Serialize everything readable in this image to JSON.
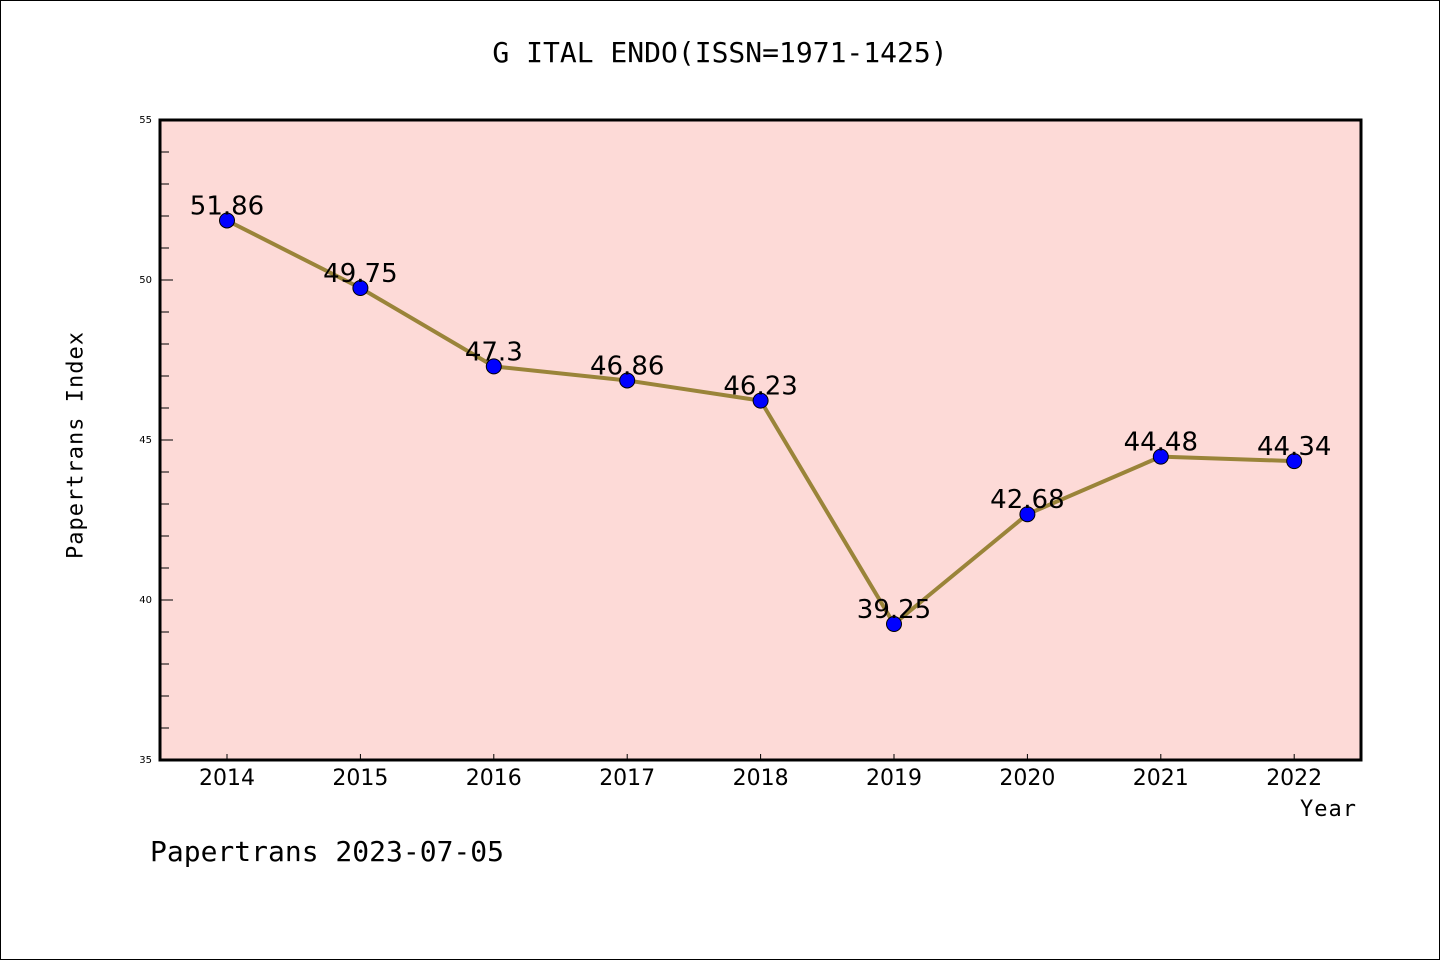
{
  "chart_data": {
    "type": "line",
    "title": "G ITAL ENDO(ISSN=1971-1425)",
    "xlabel": "Year",
    "ylabel": "Papertrans Index",
    "categories": [
      "2014",
      "2015",
      "2016",
      "2017",
      "2018",
      "2019",
      "2020",
      "2021",
      "2022"
    ],
    "values": [
      51.86,
      49.75,
      47.3,
      46.86,
      46.23,
      39.25,
      42.68,
      44.48,
      44.34
    ],
    "data_labels": [
      "51.86",
      "49.75",
      "47.3",
      "46.86",
      "46.23",
      "39.25",
      "42.68",
      "44.48",
      "44.34"
    ],
    "ylim": [
      35,
      55
    ],
    "yticks": [
      "35",
      "40",
      "45",
      "50",
      "55"
    ],
    "grid": false,
    "legend": "none",
    "colors": {
      "plot_background": "#fddad7",
      "line": "#9a8439",
      "marker": "#0000ff"
    }
  },
  "footer": "Papertrans 2023-07-05"
}
